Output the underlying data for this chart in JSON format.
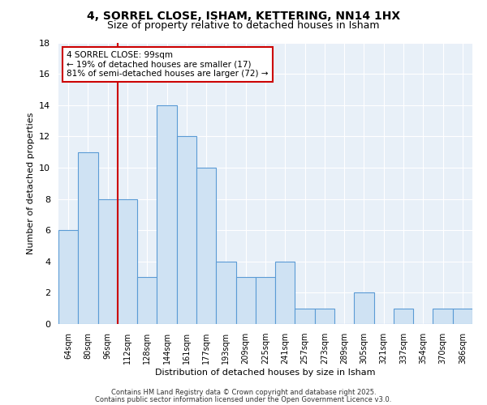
{
  "title": "4, SORREL CLOSE, ISHAM, KETTERING, NN14 1HX",
  "subtitle": "Size of property relative to detached houses in Isham",
  "xlabel": "Distribution of detached houses by size in Isham",
  "ylabel": "Number of detached properties",
  "categories": [
    "64sqm",
    "80sqm",
    "96sqm",
    "112sqm",
    "128sqm",
    "144sqm",
    "161sqm",
    "177sqm",
    "193sqm",
    "209sqm",
    "225sqm",
    "241sqm",
    "257sqm",
    "273sqm",
    "289sqm",
    "305sqm",
    "321sqm",
    "337sqm",
    "354sqm",
    "370sqm",
    "386sqm"
  ],
  "values": [
    6,
    11,
    8,
    8,
    3,
    14,
    12,
    10,
    4,
    3,
    3,
    4,
    1,
    1,
    0,
    2,
    0,
    1,
    0,
    1,
    1
  ],
  "bar_color": "#cfe2f3",
  "bar_edge_color": "#5b9bd5",
  "vline_x": 2.5,
  "vline_color": "#cc0000",
  "annotation_text": "4 SORREL CLOSE: 99sqm\n← 19% of detached houses are smaller (17)\n81% of semi-detached houses are larger (72) →",
  "annotation_box_color": "#ffffff",
  "annotation_box_edge": "#cc0000",
  "ylim": [
    0,
    18
  ],
  "yticks": [
    0,
    2,
    4,
    6,
    8,
    10,
    12,
    14,
    16,
    18
  ],
  "bg_color": "#e8f0f8",
  "footer_line1": "Contains HM Land Registry data © Crown copyright and database right 2025.",
  "footer_line2": "Contains public sector information licensed under the Open Government Licence v3.0.",
  "title_fontsize": 10,
  "subtitle_fontsize": 9,
  "tick_fontsize": 7,
  "ylabel_fontsize": 8,
  "xlabel_fontsize": 8,
  "footer_fontsize": 6,
  "annotation_fontsize": 7.5
}
